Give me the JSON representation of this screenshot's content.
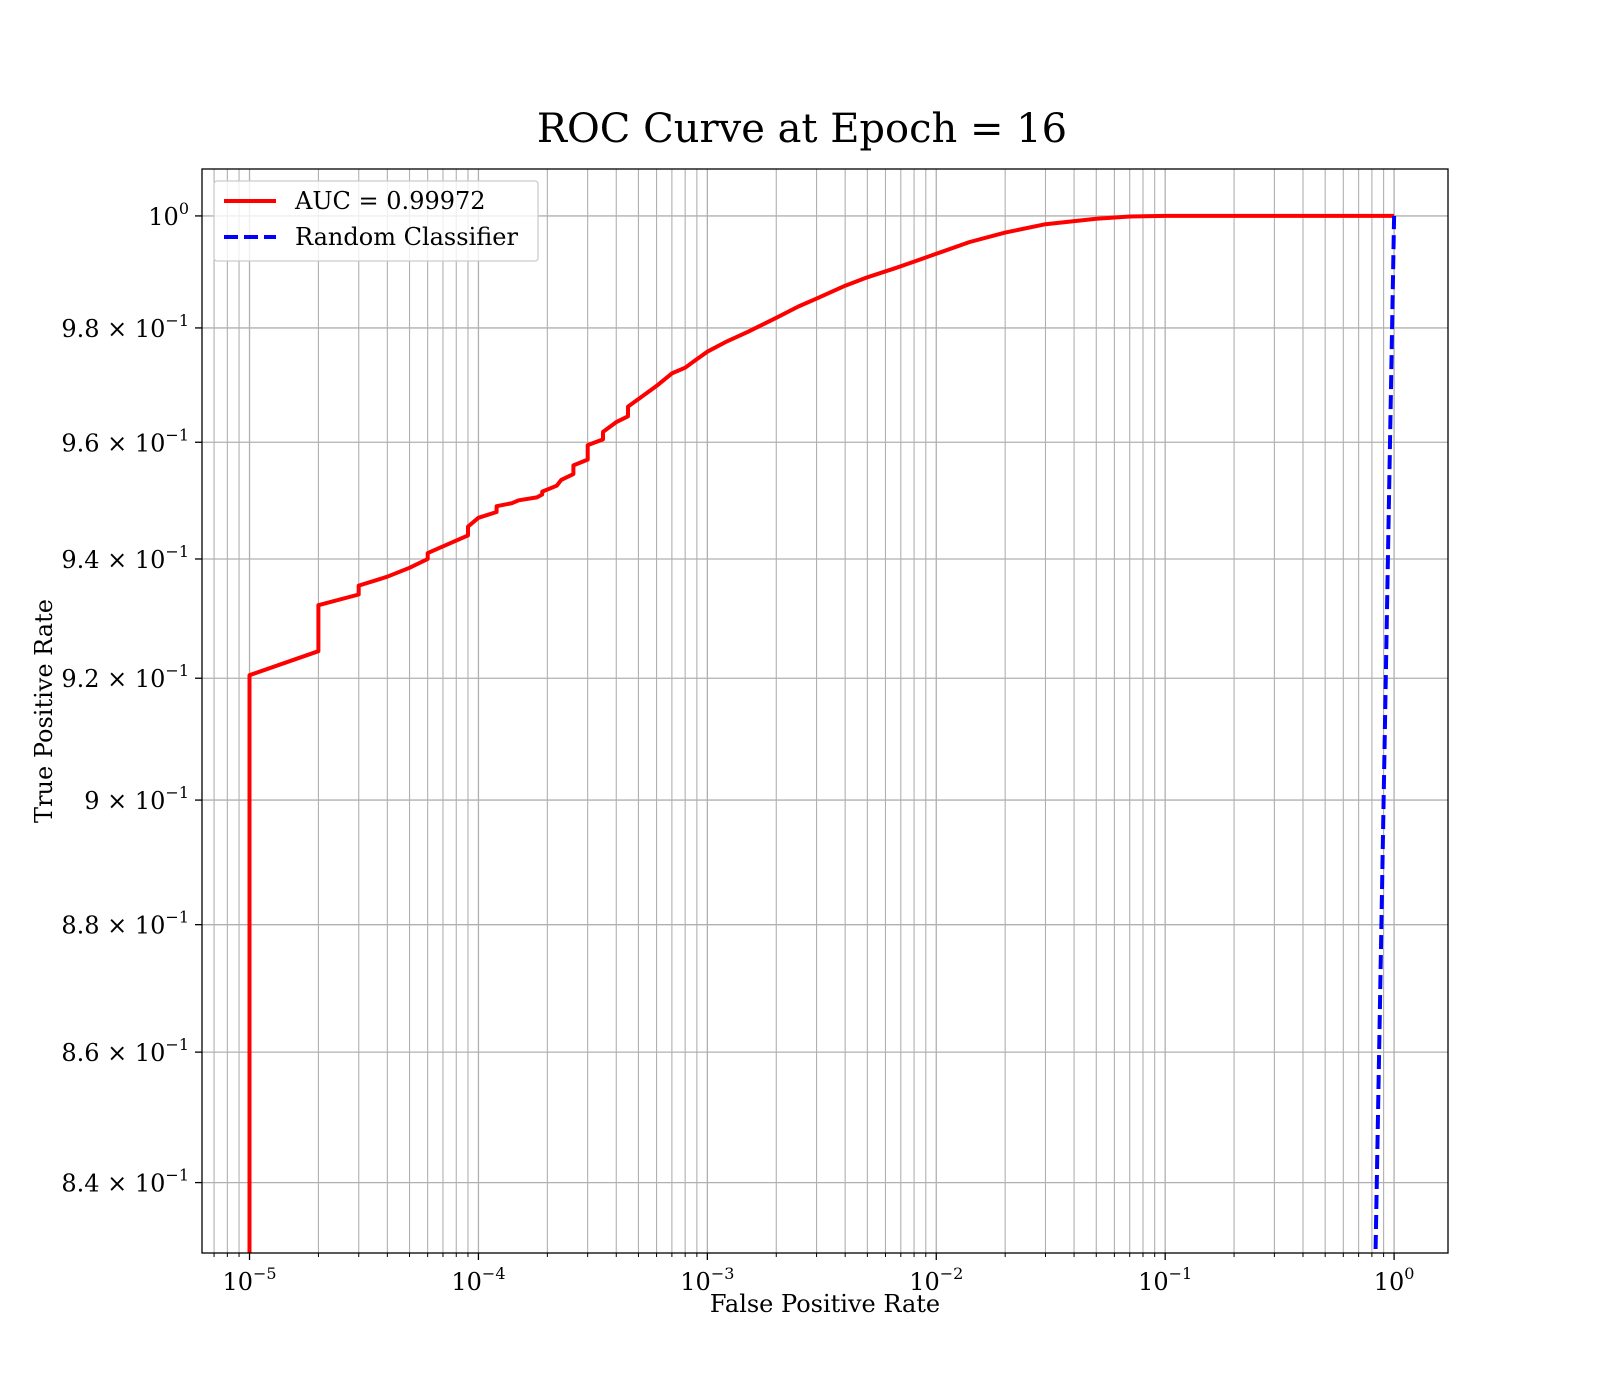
{
  "chart_data": {
    "type": "line",
    "title": "ROC Curve at Epoch = 16",
    "xlabel": "False Positive Rate",
    "ylabel": "True Positive Rate",
    "xscale": "log",
    "yscale": "log",
    "xlim": [
      6.2e-06,
      1.72
    ],
    "ylim": [
      0.8294,
      1.0085
    ],
    "grid": "major-and-minor",
    "legend_position": "top-left",
    "x_ticks": [
      {
        "value": 1e-05,
        "base": "10",
        "exp": "−5"
      },
      {
        "value": 0.0001,
        "base": "10",
        "exp": "−4"
      },
      {
        "value": 0.001,
        "base": "10",
        "exp": "−3"
      },
      {
        "value": 0.01,
        "base": "10",
        "exp": "−2"
      },
      {
        "value": 0.1,
        "base": "10",
        "exp": "−1"
      },
      {
        "value": 1,
        "base": "10",
        "exp": "0"
      }
    ],
    "y_ticks": [
      {
        "value": 1.0,
        "mant": "",
        "base": "10",
        "exp": "0"
      },
      {
        "value": 0.98,
        "mant": "9.8",
        "base": "10",
        "exp": "−1"
      },
      {
        "value": 0.96,
        "mant": "9.6",
        "base": "10",
        "exp": "−1"
      },
      {
        "value": 0.94,
        "mant": "9.4",
        "base": "10",
        "exp": "−1"
      },
      {
        "value": 0.92,
        "mant": "9.2",
        "base": "10",
        "exp": "−1"
      },
      {
        "value": 0.9,
        "mant": "9",
        "base": "10",
        "exp": "−1"
      },
      {
        "value": 0.88,
        "mant": "8.8",
        "base": "10",
        "exp": "−1"
      },
      {
        "value": 0.86,
        "mant": "8.6",
        "base": "10",
        "exp": "−1"
      },
      {
        "value": 0.84,
        "mant": "8.4",
        "base": "10",
        "exp": "−1"
      }
    ],
    "series": [
      {
        "name": "AUC = 0.99972",
        "color": "#ff0000",
        "style": "solid",
        "x": [
          1e-05,
          1e-05,
          1e-05,
          2e-05,
          2e-05,
          3e-05,
          3e-05,
          4e-05,
          5e-05,
          6e-05,
          6e-05,
          9e-05,
          9e-05,
          0.0001,
          0.00012,
          0.00012,
          0.00014,
          0.00015,
          0.00018,
          0.00019,
          0.00019,
          0.00022,
          0.00023,
          0.00026,
          0.00026,
          0.0003,
          0.0003,
          0.00035,
          0.00035,
          0.0004,
          0.00045,
          0.00045,
          0.0005,
          0.0006,
          0.0007,
          0.0008,
          0.0009,
          0.001,
          0.0012,
          0.0015,
          0.002,
          0.0025,
          0.003,
          0.004,
          0.005,
          0.0065,
          0.008,
          0.01,
          0.014,
          0.02,
          0.03,
          0.05,
          0.07,
          0.1,
          0.2,
          0.5,
          1.0
        ],
        "y": [
          0.8294,
          0.84,
          0.9205,
          0.9245,
          0.9322,
          0.934,
          0.9355,
          0.937,
          0.9385,
          0.94,
          0.941,
          0.944,
          0.9455,
          0.947,
          0.948,
          0.949,
          0.9495,
          0.95,
          0.9505,
          0.951,
          0.9515,
          0.9525,
          0.9535,
          0.9545,
          0.956,
          0.957,
          0.9595,
          0.9605,
          0.9618,
          0.9635,
          0.9645,
          0.9662,
          0.9675,
          0.9698,
          0.972,
          0.973,
          0.9745,
          0.9758,
          0.9775,
          0.9793,
          0.9818,
          0.9838,
          0.9852,
          0.9875,
          0.989,
          0.9905,
          0.9918,
          0.9932,
          0.9953,
          0.997,
          0.9985,
          0.9995,
          0.9999,
          1.0,
          1.0,
          1.0,
          1.0
        ]
      },
      {
        "name": "Random Classifier",
        "color": "#0000ff",
        "style": "dashed",
        "x": [
          0.83,
          0.88,
          0.94,
          1.0
        ],
        "y": [
          0.83,
          0.88,
          0.94,
          1.0
        ]
      }
    ]
  }
}
